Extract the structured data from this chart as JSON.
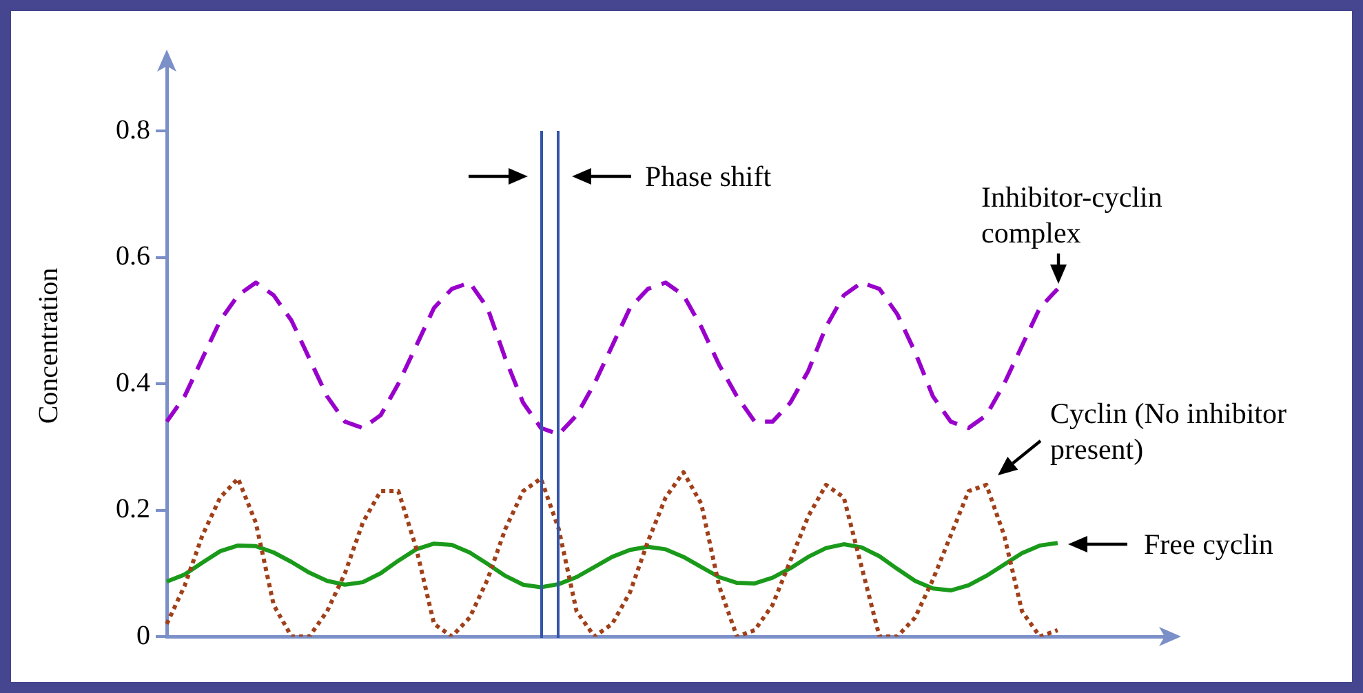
{
  "chart_data": {
    "type": "line",
    "ylabel": "Concentration",
    "categories": [
      null,
      null,
      null,
      null,
      null,
      null,
      null,
      null,
      null,
      null,
      null,
      null,
      null,
      null,
      null,
      null,
      null,
      null,
      null,
      null,
      null,
      null,
      null,
      null,
      null,
      null,
      null,
      null,
      null,
      null,
      null,
      null,
      null,
      null,
      null,
      null,
      null,
      null,
      null,
      null,
      null,
      null,
      null,
      null,
      null,
      null,
      null,
      null,
      null,
      null,
      null,
      null,
      null,
      null,
      null,
      null,
      null
    ],
    "ylim": [
      0,
      0.92
    ],
    "yticks": [
      0,
      0.2,
      0.4,
      0.6,
      0.8
    ],
    "tick_labels": "y",
    "grid": false,
    "legend": false,
    "marker": "none",
    "annotations": [
      "Phase shift"
    ],
    "series": [
      {
        "name": "Inhibitor-cyclin complex",
        "color": "#9900cc",
        "line_style": "dashed",
        "values": [
          0.34,
          0.38,
          0.44,
          0.5,
          0.54,
          0.56,
          0.54,
          0.5,
          0.44,
          0.38,
          0.34,
          0.33,
          0.35,
          0.4,
          0.46,
          0.52,
          0.55,
          0.56,
          0.52,
          0.44,
          0.37,
          0.33,
          0.32,
          0.35,
          0.4,
          0.46,
          0.52,
          0.55,
          0.56,
          0.54,
          0.49,
          0.43,
          0.38,
          0.34,
          0.34,
          0.37,
          0.42,
          0.49,
          0.54,
          0.56,
          0.55,
          0.51,
          0.45,
          0.38,
          0.34,
          0.33,
          0.35,
          0.4,
          0.46,
          0.52,
          0.55,
          null,
          null,
          null,
          null,
          null,
          null
        ]
      },
      {
        "name": "Cyclin (No inhibitor present)",
        "color": "#a0401a",
        "line_style": "dotted",
        "values": [
          0.02,
          0.08,
          0.16,
          0.22,
          0.25,
          0.18,
          0.05,
          0,
          0,
          0.04,
          0.1,
          0.18,
          0.23,
          0.23,
          0.14,
          0.02,
          0,
          0.03,
          0.09,
          0.17,
          0.23,
          0.25,
          0.17,
          0.04,
          0,
          0.02,
          0.07,
          0.15,
          0.22,
          0.26,
          0.21,
          0.08,
          0,
          0.01,
          0.05,
          0.12,
          0.19,
          0.24,
          0.22,
          0.11,
          0,
          0,
          0.03,
          0.09,
          0.16,
          0.23,
          0.24,
          0.16,
          0.04,
          0,
          0.01,
          null,
          null,
          null,
          null,
          null,
          null
        ]
      },
      {
        "name": "Free cyclin",
        "color": "#1a9a1a",
        "line_style": "solid",
        "values": [
          0.087,
          0.098,
          0.117,
          0.135,
          0.144,
          0.143,
          0.133,
          0.118,
          0.101,
          0.088,
          0.082,
          0.086,
          0.1,
          0.12,
          0.138,
          0.147,
          0.145,
          0.133,
          0.115,
          0.096,
          0.082,
          0.078,
          0.083,
          0.094,
          0.11,
          0.126,
          0.137,
          0.142,
          0.138,
          0.126,
          0.11,
          0.094,
          0.085,
          0.084,
          0.093,
          0.108,
          0.126,
          0.14,
          0.146,
          0.141,
          0.127,
          0.107,
          0.088,
          0.076,
          0.073,
          0.081,
          0.096,
          0.114,
          0.132,
          0.144,
          0.148,
          null,
          null,
          null,
          null,
          null,
          null
        ]
      }
    ]
  }
}
